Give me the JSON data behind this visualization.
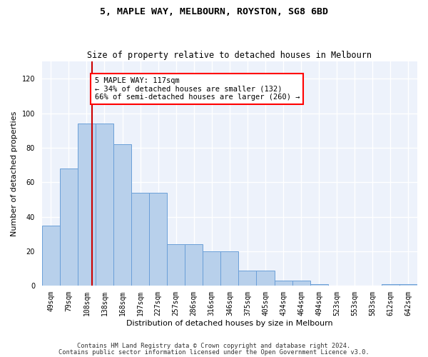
{
  "title": "5, MAPLE WAY, MELBOURN, ROYSTON, SG8 6BD",
  "subtitle": "Size of property relative to detached houses in Melbourn",
  "xlabel": "Distribution of detached houses by size in Melbourn",
  "ylabel": "Number of detached properties",
  "categories": [
    "49sqm",
    "79sqm",
    "108sqm",
    "138sqm",
    "168sqm",
    "197sqm",
    "227sqm",
    "257sqm",
    "286sqm",
    "316sqm",
    "346sqm",
    "375sqm",
    "405sqm",
    "434sqm",
    "464sqm",
    "494sqm",
    "523sqm",
    "553sqm",
    "583sqm",
    "612sqm",
    "642sqm"
  ],
  "values": [
    35,
    68,
    94,
    94,
    82,
    54,
    54,
    24,
    24,
    20,
    20,
    9,
    9,
    3,
    3,
    1,
    0,
    0,
    0,
    1,
    1
  ],
  "bar_color": "#b8d0eb",
  "bar_edge_color": "#6a9fd8",
  "annotation_text": "5 MAPLE WAY: 117sqm\n← 34% of detached houses are smaller (132)\n66% of semi-detached houses are larger (260) →",
  "annotation_box_color": "white",
  "annotation_box_edge": "red",
  "vline_color": "#cc0000",
  "ylim": [
    0,
    130
  ],
  "yticks": [
    0,
    20,
    40,
    60,
    80,
    100,
    120
  ],
  "footer1": "Contains HM Land Registry data © Crown copyright and database right 2024.",
  "footer2": "Contains public sector information licensed under the Open Government Licence v3.0.",
  "background_color": "#edf2fb",
  "grid_color": "white",
  "title_fontsize": 9.5,
  "subtitle_fontsize": 8.5,
  "tick_fontsize": 7,
  "ylabel_fontsize": 8,
  "xlabel_fontsize": 8,
  "footer_fontsize": 6.2,
  "annot_fontsize": 7.5
}
